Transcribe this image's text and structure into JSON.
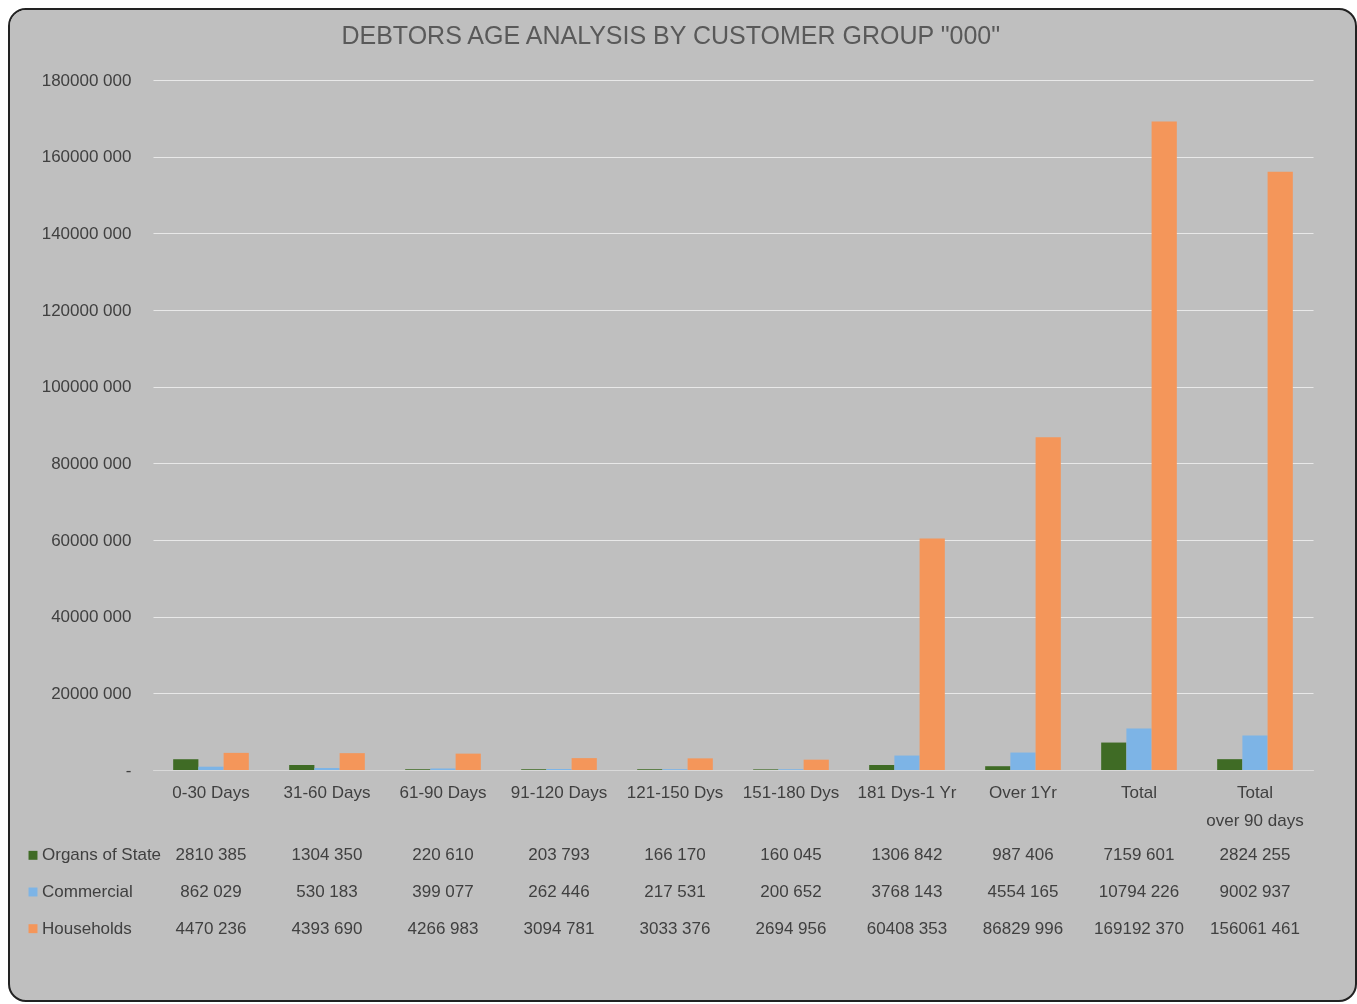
{
  "chart_data": {
    "type": "bar",
    "title": "DEBTORS AGE ANALYSIS BY CUSTOMER GROUP \"000\"",
    "categories": [
      "0-30 Days",
      "31-60 Days",
      "61-90 Days",
      "91-120 Days",
      "121-150 Dys",
      "151-180 Dys",
      "181 Dys-1 Yr",
      "Over 1Yr",
      "Total",
      "Total over 90 days"
    ],
    "series": [
      {
        "name": "Organs of State",
        "color": "#3f6b25",
        "values": [
          2810385,
          1304350,
          220610,
          203793,
          166170,
          160045,
          1306842,
          987406,
          7159601,
          2824255
        ]
      },
      {
        "name": "Commercial",
        "color": "#7db4e6",
        "values": [
          862029,
          530183,
          399077,
          262446,
          217531,
          200652,
          3768143,
          4554165,
          10794226,
          9002937
        ]
      },
      {
        "name": "Households",
        "color": "#f4965a",
        "values": [
          4470236,
          4393690,
          4266983,
          3094781,
          3033376,
          2694956,
          60408353,
          86829996,
          169192370,
          156061461
        ]
      }
    ],
    "ylim": [
      0,
      180000000
    ],
    "yticks": [
      {
        "value": 0,
        "label": "-"
      },
      {
        "value": 20000000,
        "label": "20000 000"
      },
      {
        "value": 40000000,
        "label": "40000 000"
      },
      {
        "value": 60000000,
        "label": "60000 000"
      },
      {
        "value": 80000000,
        "label": "80000 000"
      },
      {
        "value": 100000000,
        "label": "100000 000"
      },
      {
        "value": 120000000,
        "label": "120000 000"
      },
      {
        "value": 140000000,
        "label": "140000 000"
      },
      {
        "value": 160000000,
        "label": "160000 000"
      },
      {
        "value": 180000000,
        "label": "180000 000"
      }
    ],
    "grid": "y",
    "legend": "bottom left",
    "data_labels": true
  }
}
